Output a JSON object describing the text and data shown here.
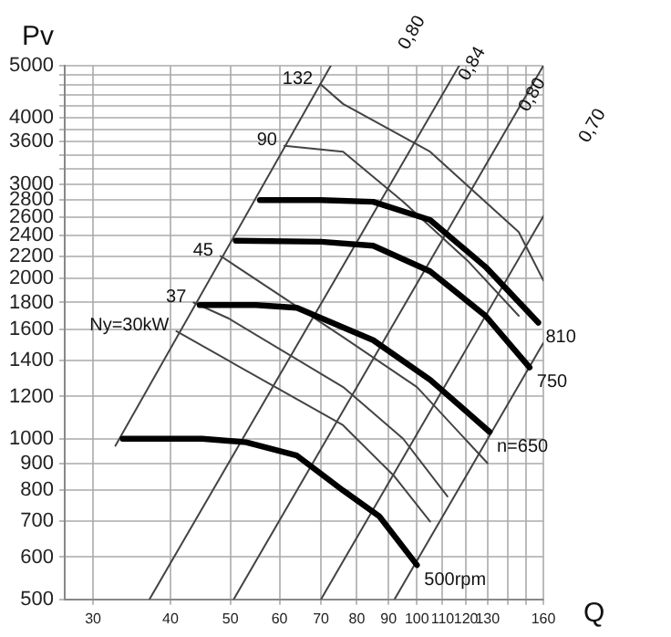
{
  "chart_data": {
    "type": "line",
    "xlabel": "Q",
    "ylabel": "Pv",
    "log": "xy",
    "grid": true,
    "legend": false,
    "marker": "none",
    "xlim": [
      27,
      160
    ],
    "ylim": [
      500,
      5000
    ],
    "xticks": [
      30,
      40,
      50,
      60,
      70,
      80,
      90,
      100,
      110,
      120,
      130,
      {
        "value": 140,
        "label": null
      },
      {
        "value": 150,
        "label": null
      },
      160
    ],
    "yticks": [
      500,
      600,
      700,
      800,
      900,
      1000,
      1200,
      1400,
      1600,
      1800,
      2000,
      2200,
      2400,
      2600,
      2800,
      3000,
      {
        "value": 3200,
        "label": null
      },
      {
        "value": 3400,
        "label": null
      },
      3600,
      {
        "value": 3800,
        "label": null
      },
      4000,
      {
        "value": 4200,
        "label": null
      },
      {
        "value": 4400,
        "label": null
      },
      {
        "value": 4600,
        "label": null
      },
      {
        "value": 4800,
        "label": null
      },
      5000
    ],
    "series": [
      {
        "color": "#000000",
        "x": [
          55.8,
          70,
          85,
          105,
          129,
          157
        ],
        "values": [
          2800,
          2800,
          2780,
          2570,
          2100,
          1650
        ]
      },
      {
        "color": "#000000",
        "x": [
          51,
          70,
          85,
          105,
          129,
          152
        ],
        "values": [
          2350,
          2340,
          2300,
          2060,
          1700,
          1360
        ]
      },
      {
        "color": "#000000",
        "x": [
          44.6,
          55,
          64,
          85,
          105,
          131
        ],
        "values": [
          1780,
          1780,
          1760,
          1530,
          1290,
          1030
        ]
      },
      {
        "color": "#000000",
        "x": [
          33.5,
          45,
          53,
          64,
          76,
          87,
          100
        ],
        "values": [
          1000,
          1000,
          985,
          930,
          800,
          715,
          580
        ]
      },
      {
        "color": "#444444",
        "x": [
          69.8,
          76,
          105,
          146,
          160
        ],
        "values": [
          4620,
          4240,
          3450,
          2440,
          1980
        ]
      },
      {
        "color": "#444444",
        "x": [
          61.1,
          76,
          95,
          121,
          146
        ],
        "values": [
          3540,
          3450,
          2780,
          2150,
          1700
        ]
      },
      {
        "color": "#444444",
        "x": [
          48.2,
          76,
          100,
          130
        ],
        "values": [
          2200,
          1550,
          1250,
          900
        ]
      },
      {
        "color": "#444444",
        "x": [
          43.6,
          49.7,
          76,
          95,
          112
        ],
        "values": [
          1800,
          1680,
          1250,
          1000,
          780
        ]
      },
      {
        "color": "#444444",
        "x": [
          40.9,
          76,
          92,
          105
        ],
        "values": [
          1590,
          1060,
          850,
          700
        ]
      },
      {
        "color": "#444444",
        "x": [
          32.6,
          72.6
        ],
        "values": [
          970,
          5000
        ]
      },
      {
        "color": "#444444",
        "x": [
          37,
          117
        ],
        "values": [
          500,
          5000
        ]
      },
      {
        "color": "#444444",
        "x": [
          50.6,
          160
        ],
        "values": [
          500,
          5000
        ]
      },
      {
        "color": "#444444",
        "x": [
          70,
          160
        ],
        "values": [
          500,
          2612
        ]
      },
      {
        "color": "#444444",
        "x": [
          92,
          160
        ],
        "values": [
          500,
          1512
        ]
      }
    ],
    "annotations": [
      {
        "text": "132",
        "x": 69.8,
        "y": 4620
      },
      {
        "text": "90",
        "x": 61.1,
        "y": 3540
      },
      {
        "text": "45",
        "x": 48.2,
        "y": 2200
      },
      {
        "text": "37",
        "x": 43.6,
        "y": 1800
      },
      {
        "text": "Ny=30kW",
        "x": 40.9,
        "y": 1590
      },
      {
        "text": "500rpm",
        "x": 100,
        "y": 580
      },
      {
        "text": "n=650",
        "x": 131,
        "y": 1030
      },
      {
        "text": "750",
        "x": 152,
        "y": 1360
      },
      {
        "text": "810",
        "x": 157,
        "y": 1650
      },
      "0,80",
      "0,84",
      "0,80",
      "0,70"
    ]
  }
}
